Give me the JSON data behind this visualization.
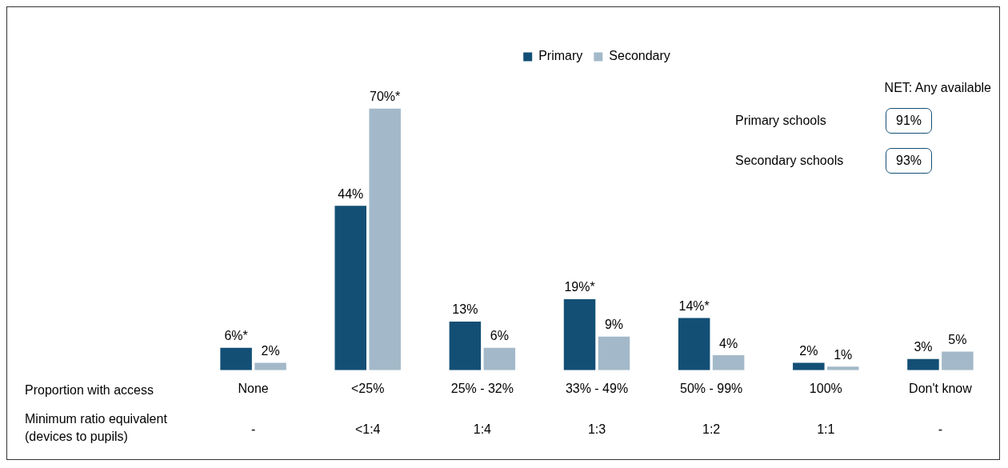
{
  "chart_data": [
    {
      "type": "bar",
      "categories": [
        "None",
        "<25%",
        "25% - 32%",
        "33% - 49%",
        "50% - 99%",
        "100%",
        "Don't know"
      ],
      "series": [
        {
          "name": "Primary",
          "color": "#134f75",
          "values": [
            6,
            44,
            13,
            19,
            14,
            2,
            3
          ],
          "value_labels": [
            "6%*",
            "44%",
            "13%",
            "19%*",
            "14%*",
            "2%",
            "3%"
          ]
        },
        {
          "name": "Secondary",
          "color": "#a3b9c9",
          "values": [
            2,
            70,
            6,
            9,
            4,
            1,
            5
          ],
          "value_labels": [
            "2%",
            "70%*",
            "6%",
            "9%",
            "4%",
            "1%",
            "5%"
          ]
        }
      ],
      "annotations": [
        "Proportion with access",
        "Minimum ratio equivalent (devices to pupils)",
        "-",
        "<1:4",
        "1:4",
        "1:3",
        "1:2",
        "1:1",
        "-"
      ],
      "legend": "top",
      "grid": false
    },
    {
      "type": "other",
      "title": "NET: Any available",
      "categories": [
        "Primary schools",
        "Secondary schools"
      ],
      "value_labels": [
        "91%",
        "93%"
      ]
    }
  ]
}
